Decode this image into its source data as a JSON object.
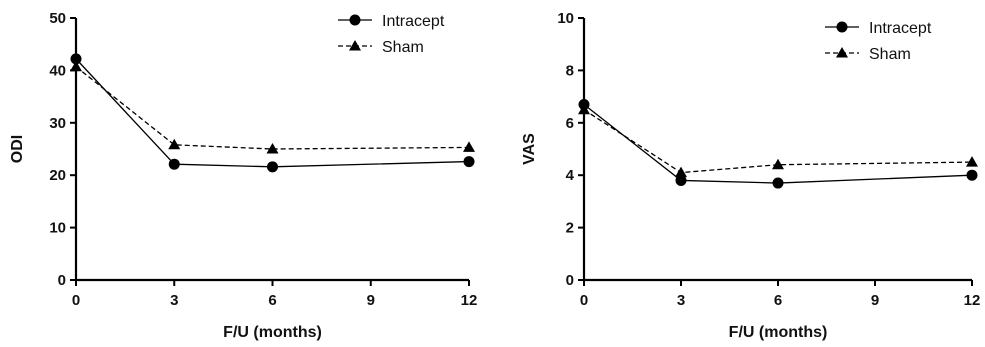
{
  "chart_data": [
    {
      "type": "line",
      "xlabel": "F/U (months)",
      "ylabel": "ODI",
      "xlim": [
        0,
        12
      ],
      "ylim": [
        0,
        50
      ],
      "x_ticks": [
        "0",
        "3",
        "6",
        "9",
        "12"
      ],
      "y_ticks": [
        "0",
        "10",
        "20",
        "30",
        "40",
        "50"
      ],
      "x": [
        0,
        3,
        6,
        12
      ],
      "legend_position": "top-right",
      "grid": false,
      "series": [
        {
          "name": "Intracept",
          "marker": "circle",
          "line": "solid",
          "color": "#000000",
          "values": [
            42.2,
            22.1,
            21.6,
            22.6
          ]
        },
        {
          "name": "Sham",
          "marker": "triangle",
          "line": "dashed",
          "color": "#000000",
          "values": [
            40.7,
            25.8,
            25.0,
            25.3
          ]
        }
      ]
    },
    {
      "type": "line",
      "xlabel": "F/U (months)",
      "ylabel": "VAS",
      "xlim": [
        0,
        12
      ],
      "ylim": [
        0,
        10
      ],
      "x_ticks": [
        "0",
        "3",
        "6",
        "9",
        "12"
      ],
      "y_ticks": [
        "0",
        "2",
        "4",
        "6",
        "8",
        "10"
      ],
      "x": [
        0,
        3,
        6,
        12
      ],
      "legend_position": "top-right",
      "grid": false,
      "series": [
        {
          "name": "Intracept",
          "marker": "circle",
          "line": "solid",
          "color": "#000000",
          "values": [
            6.7,
            3.8,
            3.7,
            4.0
          ]
        },
        {
          "name": "Sham",
          "marker": "triangle",
          "line": "dashed",
          "color": "#000000",
          "values": [
            6.5,
            4.1,
            4.4,
            4.5
          ]
        }
      ]
    }
  ]
}
